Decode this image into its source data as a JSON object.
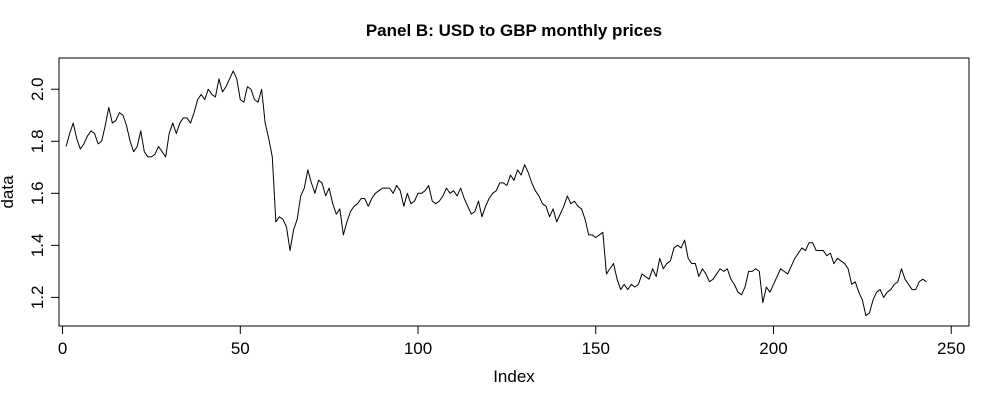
{
  "chart_data": {
    "type": "line",
    "title": "Panel B: USD to GBP monthly prices",
    "xlabel": "Index",
    "ylabel": "data",
    "xlim": [
      -1,
      255
    ],
    "ylim": [
      1.09,
      2.12
    ],
    "x_ticks": [
      0,
      50,
      100,
      150,
      200,
      250
    ],
    "y_ticks": [
      1.2,
      1.4,
      1.6,
      1.8,
      2.0
    ],
    "x_tick_labels": [
      "0",
      "50",
      "100",
      "150",
      "200",
      "250"
    ],
    "y_tick_labels": [
      "1.2",
      "1.4",
      "1.6",
      "1.8",
      "2.0"
    ],
    "grid": false,
    "line_color": "#000000",
    "series": [
      {
        "values": [
          1.78,
          1.83,
          1.87,
          1.81,
          1.77,
          1.79,
          1.82,
          1.84,
          1.83,
          1.79,
          1.8,
          1.86,
          1.93,
          1.87,
          1.88,
          1.91,
          1.9,
          1.86,
          1.8,
          1.76,
          1.78,
          1.84,
          1.76,
          1.74,
          1.74,
          1.75,
          1.78,
          1.76,
          1.74,
          1.83,
          1.87,
          1.83,
          1.87,
          1.89,
          1.89,
          1.87,
          1.91,
          1.96,
          1.98,
          1.96,
          2.0,
          1.98,
          1.97,
          2.04,
          1.99,
          2.01,
          2.04,
          2.07,
          2.04,
          1.96,
          1.95,
          2.01,
          2.0,
          1.96,
          1.95,
          2.0,
          1.87,
          1.81,
          1.74,
          1.49,
          1.51,
          1.5,
          1.47,
          1.38,
          1.46,
          1.5,
          1.59,
          1.62,
          1.69,
          1.64,
          1.6,
          1.65,
          1.64,
          1.59,
          1.62,
          1.56,
          1.52,
          1.54,
          1.44,
          1.49,
          1.53,
          1.55,
          1.56,
          1.58,
          1.58,
          1.55,
          1.58,
          1.6,
          1.61,
          1.62,
          1.62,
          1.62,
          1.6,
          1.63,
          1.61,
          1.55,
          1.6,
          1.56,
          1.57,
          1.6,
          1.6,
          1.61,
          1.63,
          1.57,
          1.56,
          1.57,
          1.59,
          1.62,
          1.6,
          1.61,
          1.59,
          1.62,
          1.58,
          1.55,
          1.52,
          1.53,
          1.57,
          1.51,
          1.55,
          1.58,
          1.6,
          1.61,
          1.64,
          1.64,
          1.63,
          1.67,
          1.65,
          1.69,
          1.67,
          1.71,
          1.68,
          1.64,
          1.61,
          1.59,
          1.56,
          1.55,
          1.51,
          1.54,
          1.49,
          1.52,
          1.55,
          1.59,
          1.56,
          1.57,
          1.55,
          1.54,
          1.5,
          1.44,
          1.44,
          1.43,
          1.44,
          1.45,
          1.29,
          1.31,
          1.33,
          1.27,
          1.23,
          1.25,
          1.23,
          1.25,
          1.24,
          1.25,
          1.29,
          1.28,
          1.27,
          1.31,
          1.28,
          1.35,
          1.31,
          1.33,
          1.34,
          1.39,
          1.4,
          1.39,
          1.42,
          1.35,
          1.33,
          1.33,
          1.28,
          1.31,
          1.29,
          1.26,
          1.27,
          1.29,
          1.31,
          1.3,
          1.31,
          1.27,
          1.25,
          1.22,
          1.21,
          1.24,
          1.3,
          1.3,
          1.31,
          1.3,
          1.18,
          1.24,
          1.22,
          1.25,
          1.28,
          1.31,
          1.3,
          1.29,
          1.32,
          1.35,
          1.37,
          1.39,
          1.38,
          1.41,
          1.41,
          1.38,
          1.38,
          1.38,
          1.36,
          1.37,
          1.33,
          1.35,
          1.34,
          1.33,
          1.31,
          1.25,
          1.26,
          1.22,
          1.19,
          1.13,
          1.14,
          1.19,
          1.22,
          1.23,
          1.2,
          1.22,
          1.23,
          1.25,
          1.26,
          1.31,
          1.27,
          1.25,
          1.23,
          1.23,
          1.26,
          1.27,
          1.26
        ]
      }
    ]
  }
}
